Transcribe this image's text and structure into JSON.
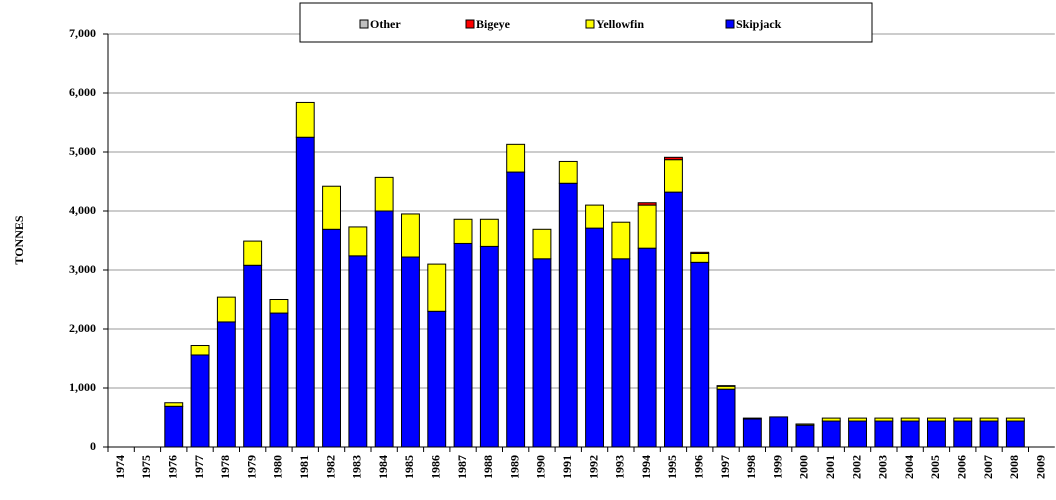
{
  "chart_data": {
    "type": "stacked_bar",
    "ylabel": "TONNES",
    "categories": [
      "1974",
      "1975",
      "1976",
      "1977",
      "1978",
      "1979",
      "1980",
      "1981",
      "1982",
      "1983",
      "1984",
      "1985",
      "1986",
      "1987",
      "1988",
      "1989",
      "1990",
      "1991",
      "1992",
      "1993",
      "1994",
      "1995",
      "1996",
      "1997",
      "1998",
      "1999",
      "2000",
      "2001",
      "2002",
      "2003",
      "2004",
      "2005",
      "2006",
      "2007",
      "2008",
      "2009"
    ],
    "series": [
      {
        "name": "Other",
        "color": "#c0c0c0",
        "values": [
          0,
          0,
          0,
          0,
          0,
          0,
          0,
          0,
          0,
          0,
          0,
          0,
          0,
          0,
          0,
          0,
          0,
          0,
          0,
          0,
          0,
          0,
          0,
          0,
          0,
          0,
          0,
          0,
          0,
          0,
          0,
          0,
          0,
          0,
          0,
          0
        ]
      },
      {
        "name": "Bigeye",
        "color": "#ff0000",
        "values": [
          0,
          0,
          0,
          0,
          0,
          0,
          0,
          0,
          0,
          0,
          0,
          0,
          0,
          0,
          0,
          0,
          0,
          0,
          0,
          0,
          40,
          40,
          20,
          10,
          0,
          0,
          0,
          0,
          0,
          0,
          0,
          0,
          0,
          0,
          0,
          0
        ]
      },
      {
        "name": "Yellowfin",
        "color": "#ffff00",
        "values": [
          0,
          0,
          60,
          160,
          420,
          410,
          230,
          590,
          730,
          490,
          570,
          730,
          800,
          410,
          460,
          470,
          500,
          370,
          390,
          620,
          730,
          550,
          150,
          50,
          15,
          0,
          20,
          50,
          50,
          50,
          50,
          50,
          50,
          50,
          50,
          0
        ]
      },
      {
        "name": "Skipjack",
        "color": "#0000ff",
        "values": [
          0,
          0,
          690,
          1560,
          2120,
          3080,
          2270,
          5250,
          3690,
          3240,
          4000,
          3220,
          2300,
          3450,
          3400,
          4660,
          3190,
          4470,
          3710,
          3190,
          3370,
          4320,
          3130,
          980,
          475,
          510,
          370,
          440,
          440,
          440,
          440,
          440,
          440,
          440,
          440,
          0
        ]
      }
    ],
    "ylim": [
      0,
      7000
    ],
    "yticks": [
      0,
      {
        "value": 1000,
        "label": "1,000"
      },
      {
        "value": 2000,
        "label": "2,000"
      },
      {
        "value": 3000,
        "label": "3,000"
      },
      {
        "value": 4000,
        "label": "4,000"
      },
      {
        "value": 5000,
        "label": "5,000"
      },
      {
        "value": 6000,
        "label": "6,000"
      },
      {
        "value": 7000,
        "label": "7,000"
      }
    ],
    "grid": true,
    "legend": "top"
  }
}
